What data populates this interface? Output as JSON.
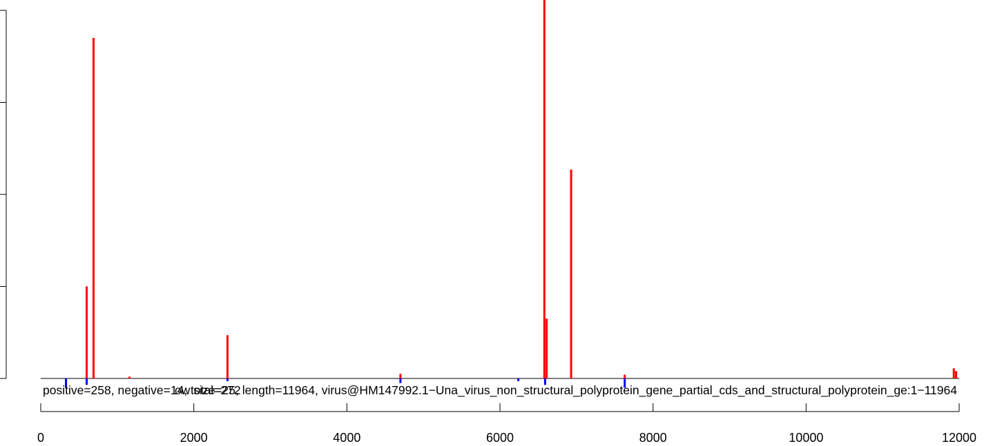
{
  "chart_data": {
    "type": "bar",
    "title": "",
    "xlabel": "",
    "ylabel": "",
    "xlim": [
      0,
      12000
    ],
    "ylim": [
      -1,
      4.1
    ],
    "x_ticks": [
      0,
      2000,
      4000,
      6000,
      8000,
      10000,
      12000
    ],
    "x_tick_labels": [
      "0",
      "2000",
      "4000",
      "6000",
      "8000",
      "10000",
      "12000"
    ],
    "grid": false,
    "legend": "none",
    "overlay_texts": [
      "ow size=25, length=11964, virus@HM147992.1−Una_virus_non_structural_polyprotein_gene_partial_cds_and_structural_polyprotein_ge:1−11964",
      "positive=258, negative=14, total=272"
    ],
    "series": [
      {
        "colour": "#ff0000",
        "points": [
          {
            "x": 600,
            "y": 1.0
          },
          {
            "x": 690,
            "y": 3.7
          },
          {
            "x": 1160,
            "y": 0.02
          },
          {
            "x": 2440,
            "y": 0.47
          },
          {
            "x": 4700,
            "y": 0.05
          },
          {
            "x": 6580,
            "y": 4.15
          },
          {
            "x": 6610,
            "y": 0.65
          },
          {
            "x": 6930,
            "y": 2.27
          },
          {
            "x": 7630,
            "y": 0.04
          },
          {
            "x": 11930,
            "y": 0.11
          },
          {
            "x": 11960,
            "y": 0.08
          }
        ]
      },
      {
        "colour": "#0000ff",
        "points": [
          {
            "x": 330,
            "y": -0.1
          },
          {
            "x": 600,
            "y": -0.07
          },
          {
            "x": 2440,
            "y": -0.03
          },
          {
            "x": 4700,
            "y": -0.05
          },
          {
            "x": 6240,
            "y": -0.03
          },
          {
            "x": 6590,
            "y": -0.07
          },
          {
            "x": 7630,
            "y": -0.1
          }
        ]
      }
    ]
  }
}
